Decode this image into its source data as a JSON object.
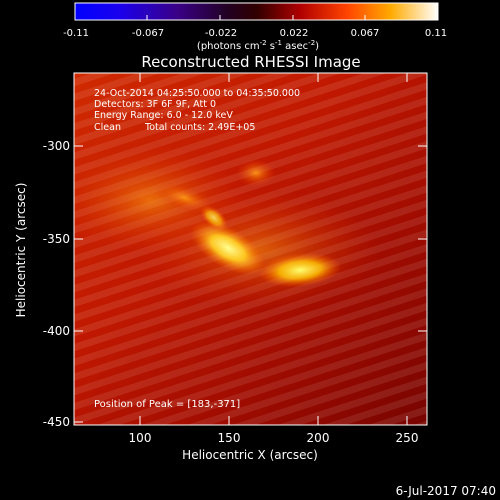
{
  "colorbar": {
    "ticks": [
      "-0.11",
      "-0.067",
      "-0.022",
      "0.022",
      "0.067",
      "0.11"
    ],
    "unit": "(photons cm",
    "unit_sup1": "-2",
    "unit_mid": " s",
    "unit_sup2": "-1",
    "unit_mid2": " asec",
    "unit_sup3": "-2",
    "unit_end": ")"
  },
  "title": "Reconstructed RHESSI Image",
  "info": {
    "time_range": "24-Oct-2014 04:25:50.000 to 04:35:50.000",
    "detectors": "Detectors: 3F 6F 9F, Att 0",
    "energy": "Energy Range: 6.0 - 12.0 keV",
    "clean_label": "Clean",
    "total_counts": "Total counts: 2.49E+05"
  },
  "peak_text": "Position of Peak = [183,-371]",
  "axes": {
    "xlabel": "Heliocentric X (arcsec)",
    "ylabel": "Heliocentric Y (arcsec)",
    "xticks": [
      "100",
      "150",
      "200",
      "250"
    ],
    "yticks": [
      "-300",
      "-350",
      "-400",
      "-450"
    ]
  },
  "footer_date": "6-Jul-2017 07:40",
  "colors": {
    "background": "#000000",
    "axis": "#ffffff",
    "hot_low": "#5a0000",
    "hot_high": "#ffff80"
  }
}
